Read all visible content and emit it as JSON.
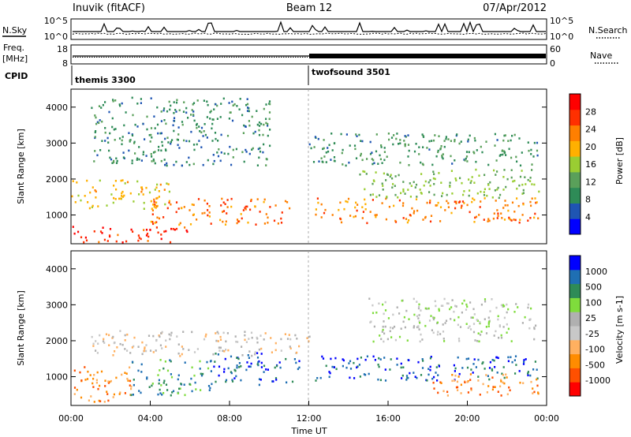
{
  "header": {
    "station": "Inuvik (fitACF)",
    "beam": "Beam 12",
    "date": "07/Apr/2012"
  },
  "chart_data": [
    {
      "type": "line",
      "panel": "n-sky-n-search",
      "left_label": "N.Sky",
      "right_label": "N.Search",
      "left_ticks": [
        "10^5",
        "10^0"
      ],
      "right_ticks": [
        "10^5",
        "10^0"
      ],
      "yscale": "log",
      "ylim": [
        1,
        100000
      ]
    },
    {
      "type": "line",
      "panel": "freq-nave",
      "left_label_top": "Freq.",
      "left_label_unit": "[MHz]",
      "right_label": "Nave",
      "left_ticks": [
        "18",
        "8"
      ],
      "right_ticks": [
        "60",
        "0"
      ],
      "freq_ylim": [
        8,
        18
      ],
      "nave_ylim": [
        0,
        60
      ]
    },
    {
      "type": "table",
      "panel": "cpid",
      "label": "CPID",
      "modes": [
        {
          "name": "themis 3300",
          "start": "00:00",
          "end": "12:00"
        },
        {
          "name": "twofsound 3501",
          "start": "12:00",
          "end": "24:00"
        }
      ]
    },
    {
      "type": "heatmap",
      "panel": "power",
      "ylabel": "Slant Range [km]",
      "yticks": [
        "1000",
        "2000",
        "3000",
        "4000"
      ],
      "ylim": [
        200,
        4500
      ],
      "colorbar_label": "Power [dB]",
      "colorbar_ticks": [
        "28",
        "24",
        "20",
        "16",
        "12",
        "8",
        "4"
      ],
      "colorbar_range": [
        0,
        32
      ],
      "colors": [
        "#0000ff",
        "#1f55b3",
        "#2e8b57",
        "#5aa05a",
        "#9acd32",
        "#ffb000",
        "#ff7f00",
        "#ff3000",
        "#ff0000"
      ],
      "scatter_bands": [
        {
          "t0": 0,
          "t1": 6,
          "r0": 250,
          "r1": 700,
          "v": 29
        },
        {
          "t0": 4,
          "t1": 11,
          "r0": 750,
          "r1": 1500,
          "v": 25
        },
        {
          "t0": 0,
          "t1": 5,
          "r0": 1200,
          "r1": 2000,
          "v": 19
        },
        {
          "t0": 12.3,
          "t1": 23.6,
          "r0": 800,
          "r1": 1500,
          "v": 24
        },
        {
          "t0": 14.5,
          "t1": 23.6,
          "r0": 1500,
          "r1": 2300,
          "v": 14
        },
        {
          "t0": 12,
          "t1": 23.6,
          "r0": 2400,
          "r1": 3300,
          "v": 9
        },
        {
          "t0": 1,
          "t1": 10,
          "r0": 2400,
          "r1": 4300,
          "v": 8
        }
      ]
    },
    {
      "type": "heatmap",
      "panel": "velocity",
      "ylabel": "Slant Range [km]",
      "yticks": [
        "1000",
        "2000",
        "3000",
        "4000"
      ],
      "ylim": [
        200,
        4500
      ],
      "xlabel": "Time UT",
      "xticks": [
        "00:00",
        "04:00",
        "08:00",
        "12:00",
        "16:00",
        "20:00",
        "00:00"
      ],
      "xlim": [
        0,
        24
      ],
      "colorbar_label": "Velocity [m s-1]",
      "colorbar_ticks": [
        "1000",
        "500",
        "100",
        "25",
        "-25",
        "-100",
        "-500",
        "-1000"
      ],
      "colors": [
        "#ff0000",
        "#ff5000",
        "#ff8c00",
        "#ffb060",
        "#c8c8c8",
        "#b0b0b0",
        "#7fdc3c",
        "#2e8b57",
        "#1f6fb3",
        "#0000ff"
      ],
      "scatter_bands": [
        {
          "t0": 0,
          "t1": 3,
          "r0": 300,
          "r1": 1300,
          "v": 2
        },
        {
          "t0": 3,
          "t1": 7,
          "r0": 500,
          "r1": 1500,
          "v": 7
        },
        {
          "t0": 7,
          "t1": 11.5,
          "r0": 800,
          "r1": 1700,
          "v": 8
        },
        {
          "t0": 12.3,
          "t1": 23.6,
          "r0": 900,
          "r1": 1600,
          "v": 8
        },
        {
          "t0": 18,
          "t1": 23.6,
          "r0": 500,
          "r1": 1100,
          "v": 2
        },
        {
          "t0": 1,
          "t1": 12,
          "r0": 1600,
          "r1": 2300,
          "v": 4
        },
        {
          "t0": 15,
          "t1": 23.6,
          "r0": 2000,
          "r1": 3200,
          "v": 5
        }
      ]
    }
  ],
  "time_axis_label": "Time UT"
}
